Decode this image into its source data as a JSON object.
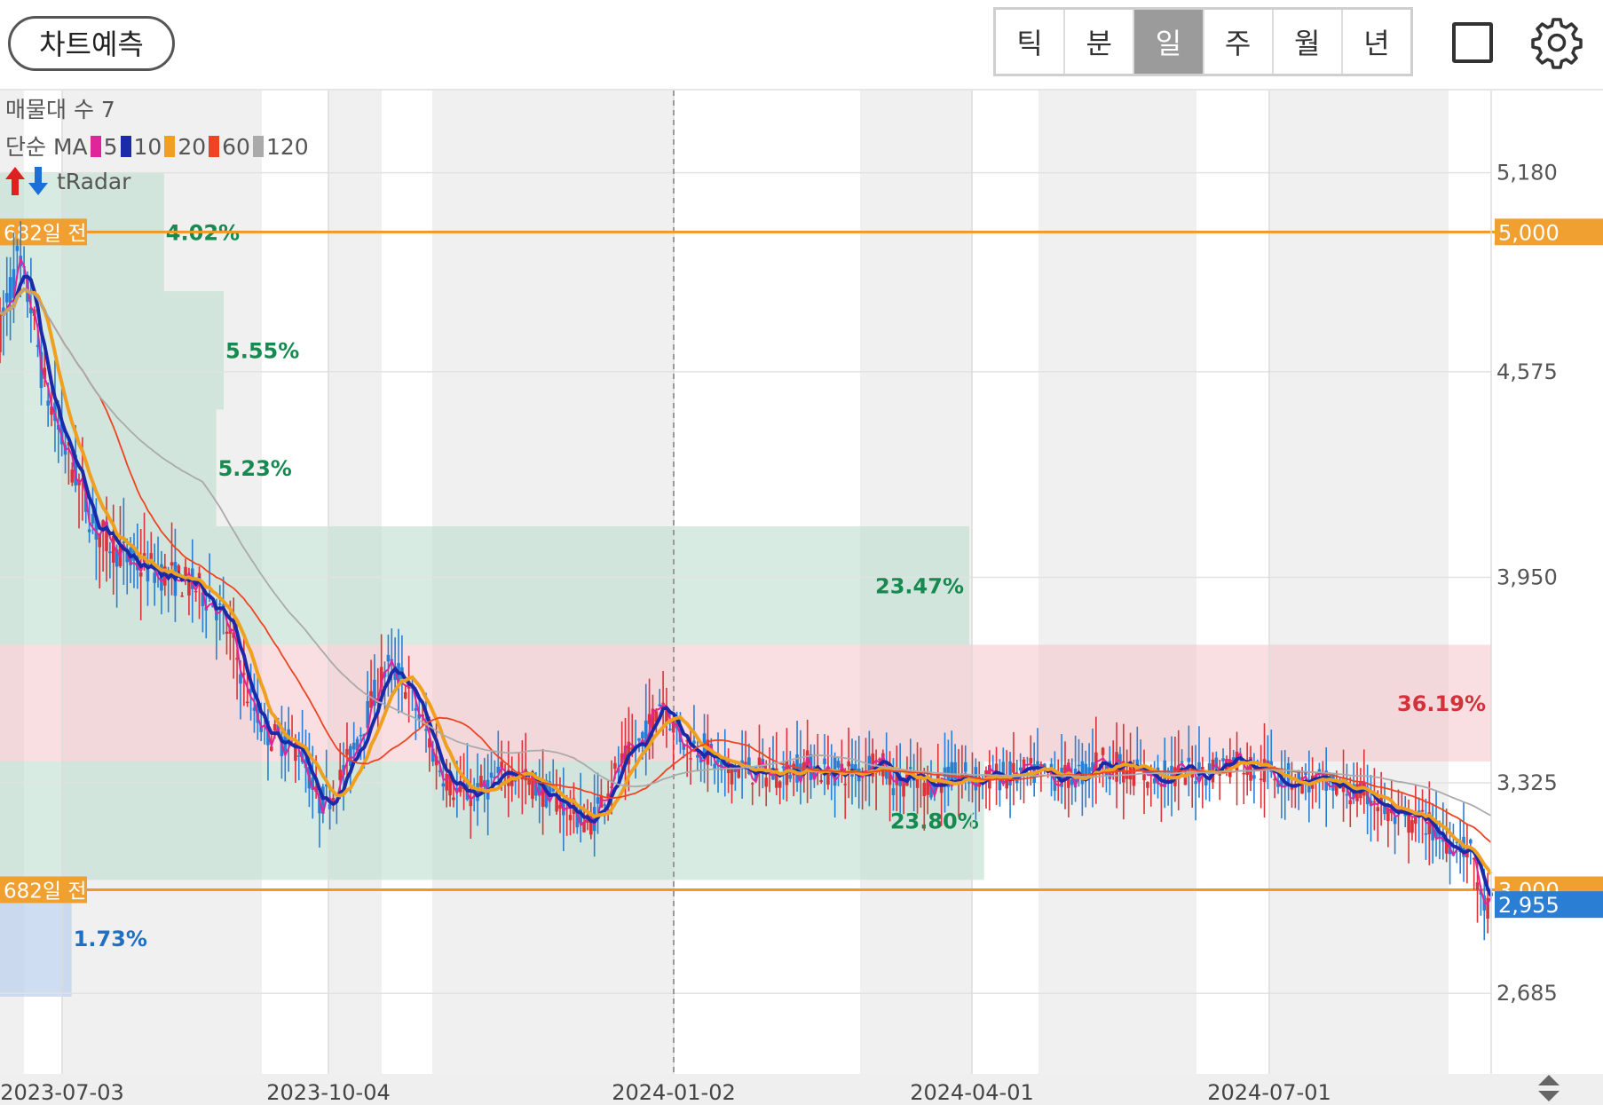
{
  "toolbar": {
    "predict_label": "차트예측",
    "periods": [
      "틱",
      "분",
      "일",
      "주",
      "월",
      "년"
    ],
    "active_period": "일",
    "icons": [
      "square-icon",
      "gear-icon"
    ]
  },
  "legend": {
    "volume_profile": "매물대 수 7",
    "ma_label": "단순 MA",
    "ma_items": [
      {
        "label": "5",
        "color": "#e0259a"
      },
      {
        "label": "10",
        "color": "#1a2aa8"
      },
      {
        "label": "20",
        "color": "#f0a020"
      },
      {
        "label": "60",
        "color": "#ee4422"
      },
      {
        "label": "120",
        "color": "#aaaaaa"
      }
    ],
    "radar_label": "tRadar"
  },
  "chart_data": {
    "type": "candlestick",
    "y_ticks": [
      "5,180",
      "4,575",
      "3,950",
      "3,325",
      "2,685"
    ],
    "x_ticks": [
      "2023-07-03",
      "2023-10-04",
      "2024-01-02",
      "2024-04-01",
      "2024-07-01"
    ],
    "ylim": [
      2440,
      5430
    ],
    "ref_lines": [
      {
        "value": 5000,
        "label": "5,000",
        "marker": "682일 전"
      },
      {
        "value": 3000,
        "label": "3,000",
        "marker": "682일 전"
      }
    ],
    "current_price": {
      "value": 2955,
      "label": "2,955"
    },
    "volume_profile": [
      {
        "low": 4820,
        "high": 5180,
        "pct": "4.02%",
        "width": 0.11,
        "color": "green"
      },
      {
        "low": 4460,
        "high": 4820,
        "pct": "5.55%",
        "width": 0.15,
        "color": "green"
      },
      {
        "low": 4105,
        "high": 4460,
        "pct": "5.23%",
        "width": 0.145,
        "color": "green"
      },
      {
        "low": 3745,
        "high": 4105,
        "pct": "23.47%",
        "width": 0.65,
        "color": "green"
      },
      {
        "low": 3390,
        "high": 3745,
        "pct": "36.19%",
        "width": 1.0,
        "color": "red"
      },
      {
        "low": 3030,
        "high": 3390,
        "pct": "23.80%",
        "width": 0.66,
        "color": "green"
      },
      {
        "low": 2675,
        "high": 3030,
        "pct": "1.73%",
        "width": 0.048,
        "color": "blue"
      }
    ],
    "close_path": [
      [
        0,
        4700
      ],
      [
        10,
        4900
      ],
      [
        18,
        4780
      ],
      [
        25,
        4550
      ],
      [
        35,
        4380
      ],
      [
        45,
        4250
      ],
      [
        55,
        4100
      ],
      [
        65,
        4050
      ],
      [
        75,
        4000
      ],
      [
        85,
        3980
      ],
      [
        95,
        3960
      ],
      [
        105,
        3940
      ],
      [
        115,
        3915
      ],
      [
        125,
        3875
      ],
      [
        135,
        3760
      ],
      [
        145,
        3580
      ],
      [
        155,
        3480
      ],
      [
        165,
        3450
      ],
      [
        175,
        3430
      ],
      [
        185,
        3260
      ],
      [
        195,
        3300
      ],
      [
        205,
        3420
      ],
      [
        215,
        3550
      ],
      [
        225,
        3680
      ],
      [
        235,
        3640
      ],
      [
        245,
        3520
      ],
      [
        255,
        3380
      ],
      [
        265,
        3300
      ],
      [
        275,
        3290
      ],
      [
        285,
        3320
      ],
      [
        295,
        3360
      ],
      [
        305,
        3340
      ],
      [
        315,
        3300
      ],
      [
        325,
        3270
      ],
      [
        335,
        3230
      ],
      [
        342,
        3200
      ],
      [
        345,
        3210
      ],
      [
        355,
        3330
      ],
      [
        365,
        3400
      ],
      [
        375,
        3460
      ],
      [
        385,
        3590
      ],
      [
        392,
        3500
      ],
      [
        400,
        3440
      ],
      [
        410,
        3430
      ],
      [
        420,
        3360
      ],
      [
        430,
        3370
      ],
      [
        440,
        3360
      ],
      [
        450,
        3350
      ],
      [
        460,
        3365
      ],
      [
        470,
        3380
      ],
      [
        480,
        3360
      ],
      [
        490,
        3360
      ],
      [
        500,
        3360
      ],
      [
        510,
        3400
      ],
      [
        520,
        3330
      ],
      [
        530,
        3330
      ],
      [
        540,
        3320
      ],
      [
        550,
        3340
      ],
      [
        560,
        3345
      ],
      [
        570,
        3335
      ],
      [
        580,
        3345
      ],
      [
        590,
        3345
      ],
      [
        600,
        3355
      ],
      [
        610,
        3350
      ],
      [
        620,
        3340
      ],
      [
        630,
        3355
      ],
      [
        640,
        3395
      ],
      [
        650,
        3375
      ],
      [
        660,
        3360
      ],
      [
        670,
        3340
      ],
      [
        680,
        3350
      ],
      [
        690,
        3355
      ],
      [
        700,
        3360
      ],
      [
        710,
        3375
      ],
      [
        720,
        3395
      ],
      [
        730,
        3365
      ],
      [
        740,
        3360
      ],
      [
        750,
        3340
      ],
      [
        760,
        3330
      ],
      [
        770,
        3320
      ],
      [
        780,
        3310
      ],
      [
        790,
        3290
      ],
      [
        800,
        3280
      ],
      [
        810,
        3220
      ],
      [
        820,
        3205
      ],
      [
        830,
        3205
      ],
      [
        840,
        3150
      ],
      [
        850,
        3140
      ],
      [
        858,
        3100
      ],
      [
        862,
        2960
      ],
      [
        865,
        2950
      ],
      [
        868,
        2955
      ]
    ],
    "close_path_note": "",
    "x_span": [
      0,
      868
    ]
  }
}
